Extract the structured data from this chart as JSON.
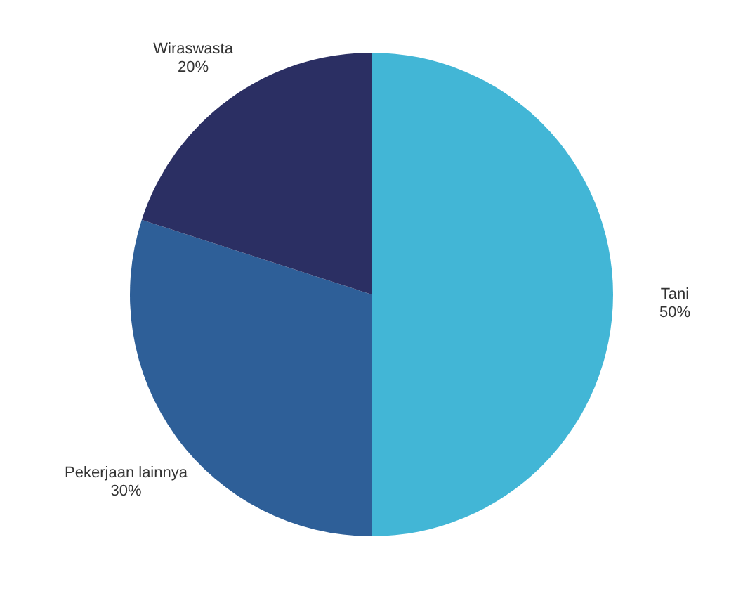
{
  "chart_data": {
    "type": "pie",
    "categories": [
      "Tani",
      "Pekerjaan lainnya",
      "Wiraswasta"
    ],
    "values": [
      50,
      30,
      20
    ],
    "colors": [
      "#42b6d6",
      "#2e5f98",
      "#2b2f63"
    ],
    "value_labels": [
      "50%",
      "30%",
      "20%"
    ]
  }
}
